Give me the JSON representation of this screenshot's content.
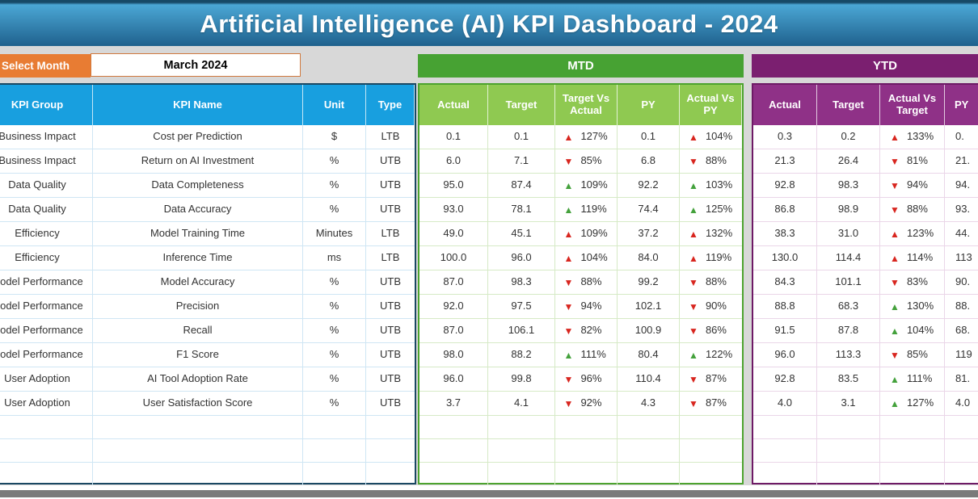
{
  "title": "Artificial Intelligence (AI) KPI Dashboard - 2024",
  "controls": {
    "select_month_label": "Select Month",
    "selected_month": "March 2024"
  },
  "sections": {
    "mtd_label": "MTD",
    "ytd_label": "YTD"
  },
  "left_table": {
    "headers": [
      "KPI Group",
      "KPI Name",
      "Unit",
      "Type"
    ]
  },
  "mtd_table": {
    "headers": [
      "Actual",
      "Target",
      "Target Vs Actual",
      "PY",
      "Actual Vs PY"
    ]
  },
  "ytd_table": {
    "headers": [
      "Actual",
      "Target",
      "Actual Vs Target",
      "PY"
    ]
  },
  "empty_row_count": 3,
  "rows": [
    {
      "group": "Business Impact",
      "name": "Cost per Prediction",
      "unit": "$",
      "type": "LTB",
      "mtd": {
        "actual": "0.1",
        "target": "0.1",
        "tva": {
          "dir": "up",
          "color": "red",
          "pct": "127%"
        },
        "py": "0.1",
        "avpy": {
          "dir": "up",
          "color": "red",
          "pct": "104%"
        }
      },
      "ytd": {
        "actual": "0.3",
        "target": "0.2",
        "avt": {
          "dir": "up",
          "color": "red",
          "pct": "133%"
        },
        "py_visible": "0."
      }
    },
    {
      "group": "Business Impact",
      "name": "Return on AI Investment",
      "unit": "%",
      "type": "UTB",
      "mtd": {
        "actual": "6.0",
        "target": "7.1",
        "tva": {
          "dir": "down",
          "color": "red",
          "pct": "85%"
        },
        "py": "6.8",
        "avpy": {
          "dir": "down",
          "color": "red",
          "pct": "88%"
        }
      },
      "ytd": {
        "actual": "21.3",
        "target": "26.4",
        "avt": {
          "dir": "down",
          "color": "red",
          "pct": "81%"
        },
        "py_visible": "21."
      }
    },
    {
      "group": "Data Quality",
      "name": "Data Completeness",
      "unit": "%",
      "type": "UTB",
      "mtd": {
        "actual": "95.0",
        "target": "87.4",
        "tva": {
          "dir": "up",
          "color": "green",
          "pct": "109%"
        },
        "py": "92.2",
        "avpy": {
          "dir": "up",
          "color": "green",
          "pct": "103%"
        }
      },
      "ytd": {
        "actual": "92.8",
        "target": "98.3",
        "avt": {
          "dir": "down",
          "color": "red",
          "pct": "94%"
        },
        "py_visible": "94."
      }
    },
    {
      "group": "Data Quality",
      "name": "Data Accuracy",
      "unit": "%",
      "type": "UTB",
      "mtd": {
        "actual": "93.0",
        "target": "78.1",
        "tva": {
          "dir": "up",
          "color": "green",
          "pct": "119%"
        },
        "py": "74.4",
        "avpy": {
          "dir": "up",
          "color": "green",
          "pct": "125%"
        }
      },
      "ytd": {
        "actual": "86.8",
        "target": "98.9",
        "avt": {
          "dir": "down",
          "color": "red",
          "pct": "88%"
        },
        "py_visible": "93."
      }
    },
    {
      "group": "Efficiency",
      "name": "Model Training Time",
      "unit": "Minutes",
      "type": "LTB",
      "mtd": {
        "actual": "49.0",
        "target": "45.1",
        "tva": {
          "dir": "up",
          "color": "red",
          "pct": "109%"
        },
        "py": "37.2",
        "avpy": {
          "dir": "up",
          "color": "red",
          "pct": "132%"
        }
      },
      "ytd": {
        "actual": "38.3",
        "target": "31.0",
        "avt": {
          "dir": "up",
          "color": "red",
          "pct": "123%"
        },
        "py_visible": "44."
      }
    },
    {
      "group": "Efficiency",
      "name": "Inference Time",
      "unit": "ms",
      "type": "LTB",
      "mtd": {
        "actual": "100.0",
        "target": "96.0",
        "tva": {
          "dir": "up",
          "color": "red",
          "pct": "104%"
        },
        "py": "84.0",
        "avpy": {
          "dir": "up",
          "color": "red",
          "pct": "119%"
        }
      },
      "ytd": {
        "actual": "130.0",
        "target": "114.4",
        "avt": {
          "dir": "up",
          "color": "red",
          "pct": "114%"
        },
        "py_visible": "113"
      }
    },
    {
      "group": "Model Performance",
      "name": "Model Accuracy",
      "unit": "%",
      "type": "UTB",
      "mtd": {
        "actual": "87.0",
        "target": "98.3",
        "tva": {
          "dir": "down",
          "color": "red",
          "pct": "88%"
        },
        "py": "99.2",
        "avpy": {
          "dir": "down",
          "color": "red",
          "pct": "88%"
        }
      },
      "ytd": {
        "actual": "84.3",
        "target": "101.1",
        "avt": {
          "dir": "down",
          "color": "red",
          "pct": "83%"
        },
        "py_visible": "90."
      }
    },
    {
      "group": "Model Performance",
      "name": "Precision",
      "unit": "%",
      "type": "UTB",
      "mtd": {
        "actual": "92.0",
        "target": "97.5",
        "tva": {
          "dir": "down",
          "color": "red",
          "pct": "94%"
        },
        "py": "102.1",
        "avpy": {
          "dir": "down",
          "color": "red",
          "pct": "90%"
        }
      },
      "ytd": {
        "actual": "88.8",
        "target": "68.3",
        "avt": {
          "dir": "up",
          "color": "green",
          "pct": "130%"
        },
        "py_visible": "88."
      }
    },
    {
      "group": "Model Performance",
      "name": "Recall",
      "unit": "%",
      "type": "UTB",
      "mtd": {
        "actual": "87.0",
        "target": "106.1",
        "tva": {
          "dir": "down",
          "color": "red",
          "pct": "82%"
        },
        "py": "100.9",
        "avpy": {
          "dir": "down",
          "color": "red",
          "pct": "86%"
        }
      },
      "ytd": {
        "actual": "91.5",
        "target": "87.8",
        "avt": {
          "dir": "up",
          "color": "green",
          "pct": "104%"
        },
        "py_visible": "68."
      }
    },
    {
      "group": "Model Performance",
      "name": "F1 Score",
      "unit": "%",
      "type": "UTB",
      "mtd": {
        "actual": "98.0",
        "target": "88.2",
        "tva": {
          "dir": "up",
          "color": "green",
          "pct": "111%"
        },
        "py": "80.4",
        "avpy": {
          "dir": "up",
          "color": "green",
          "pct": "122%"
        }
      },
      "ytd": {
        "actual": "96.0",
        "target": "113.3",
        "avt": {
          "dir": "down",
          "color": "red",
          "pct": "85%"
        },
        "py_visible": "119"
      }
    },
    {
      "group": "User Adoption",
      "name": "AI Tool Adoption Rate",
      "unit": "%",
      "type": "UTB",
      "mtd": {
        "actual": "96.0",
        "target": "99.8",
        "tva": {
          "dir": "down",
          "color": "red",
          "pct": "96%"
        },
        "py": "110.4",
        "avpy": {
          "dir": "down",
          "color": "red",
          "pct": "87%"
        }
      },
      "ytd": {
        "actual": "92.8",
        "target": "83.5",
        "avt": {
          "dir": "up",
          "color": "green",
          "pct": "111%"
        },
        "py_visible": "81."
      }
    },
    {
      "group": "User Adoption",
      "name": "User Satisfaction Score",
      "unit": "%",
      "type": "UTB",
      "mtd": {
        "actual": "3.7",
        "target": "4.1",
        "tva": {
          "dir": "down",
          "color": "red",
          "pct": "92%"
        },
        "py": "4.3",
        "avpy": {
          "dir": "down",
          "color": "red",
          "pct": "87%"
        }
      },
      "ytd": {
        "actual": "4.0",
        "target": "3.1",
        "avt": {
          "dir": "up",
          "color": "green",
          "pct": "127%"
        },
        "py_visible": "4.0"
      }
    }
  ],
  "colors": {
    "banner_top": "#4BA7D5",
    "banner_bottom": "#1F618D",
    "banner_edge": "#174A67",
    "background": "#D8D8D8",
    "orange": "#E87C33",
    "table_header_blue": "#189FDF",
    "left_border_navy": "#1A4863",
    "left_grid": "#CFE6F4",
    "mtd_band_green": "#47A233",
    "mtd_subheader_green": "#8FC951",
    "mtd_border_green": "#4DA32F",
    "mtd_grid": "#D6EAC6",
    "ytd_band_purple": "#7B1F70",
    "ytd_subheader_purple": "#8F3187",
    "ytd_border_purple": "#6E1A66",
    "ytd_grid": "#EAD6E8",
    "arrow_red": "#D8261F",
    "arrow_green": "#44A13C",
    "bottom_bar": "#7A7A7A",
    "text": "#333333"
  }
}
